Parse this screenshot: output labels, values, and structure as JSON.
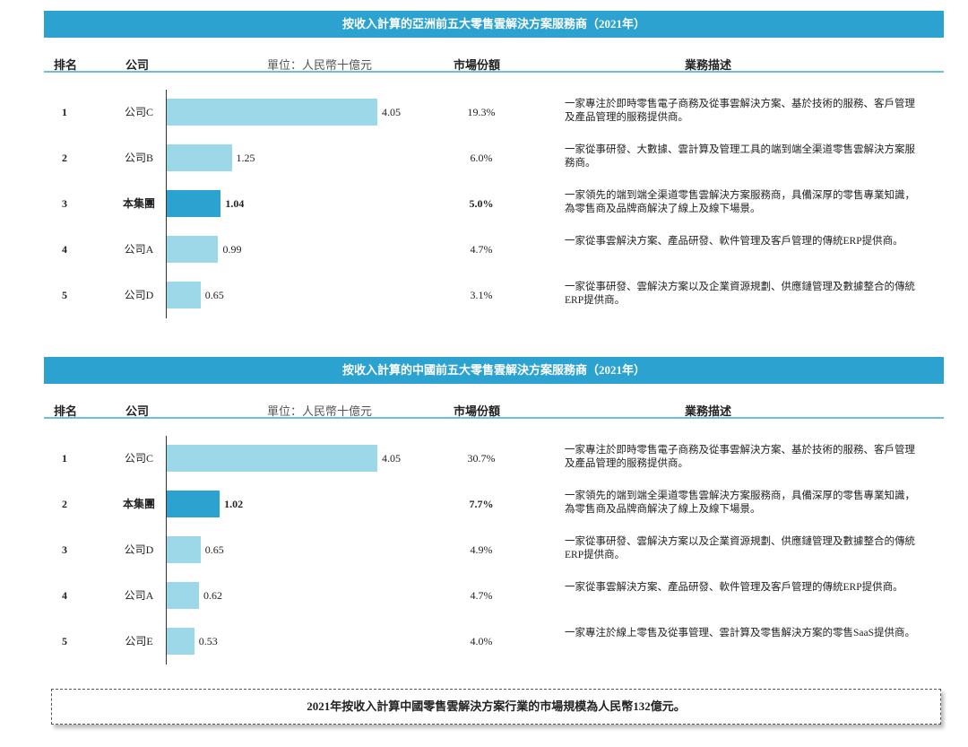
{
  "chart_data": [
    {
      "type": "bar",
      "title": "按收入計算的亞洲前五大零售雲解決方案服務商（2021年）",
      "headers": [
        "排名",
        "公司",
        "單位：人民幣十億元",
        "市場份額",
        "業務描述"
      ],
      "ranks": [
        1,
        2,
        3,
        4,
        5
      ],
      "categories": [
        "公司C",
        "公司B",
        "本集團",
        "公司A",
        "公司D"
      ],
      "values": [
        4.05,
        1.25,
        1.04,
        0.99,
        0.65
      ],
      "shares": [
        "19.3%",
        "6.0%",
        "5.0%",
        "4.7%",
        "3.1%"
      ],
      "descriptions": [
        "一家專注於即時零售電子商務及從事雲解決方案、基於技術的服務、客戶管理及產品管理的服務提供商。",
        "一家從事研發、大數據、雲計算及管理工具的端到端全渠道零售雲解決方案服務商。",
        "一家領先的端到端全渠道零售雲解決方案服務商，具備深厚的零售專業知識，為零售商及品牌商解決了線上及線下場景。",
        "一家從事雲解決方案、產品研發、軟件管理及客戶管理的傳統ERP提供商。",
        "一家從事研發、雲解決方案以及企業資源規劃、供應鏈管理及數據整合的傳統ERP提供商。"
      ],
      "color": "#9dd8e8",
      "highlight_color": "#2ba2d0",
      "highlight": 2
    },
    {
      "type": "bar",
      "title": "按收入計算的中國前五大零售雲解決方案服務商（2021年）",
      "headers": [
        "排名",
        "公司",
        "單位：人民幣十億元",
        "市場份額",
        "業務描述"
      ],
      "ranks": [
        1,
        2,
        3,
        4,
        5
      ],
      "categories": [
        "公司C",
        "本集團",
        "公司D",
        "公司A",
        "公司E"
      ],
      "values": [
        4.05,
        1.02,
        0.65,
        0.62,
        0.53
      ],
      "shares": [
        "30.7%",
        "7.7%",
        "4.9%",
        "4.7%",
        "4.0%"
      ],
      "descriptions": [
        "一家專注於即時零售電子商務及從事雲解決方案、基於技術的服務、客戶管理及產品管理的服務提供商。",
        "一家領先的端到端全渠道零售雲解決方案服務商，具備深厚的零售專業知識，為零售商及品牌商解決了線上及線下場景。",
        "一家從事研發、雲解決方案以及企業資源規劃、供應鏈管理及數據整合的傳統ERP提供商。",
        "一家從事雲解決方案、產品研發、軟件管理及客戶管理的傳統ERP提供商。",
        "一家專注於線上零售及從事管理、雲計算及零售解決方案的零售SaaS提供商。"
      ],
      "color": "#9dd8e8",
      "highlight_color": "#2ba2d0",
      "highlight": 1
    }
  ],
  "footnote": "2021年按收入計算中國零售雲解決方案行業的市場規模為人民幣132億元。"
}
